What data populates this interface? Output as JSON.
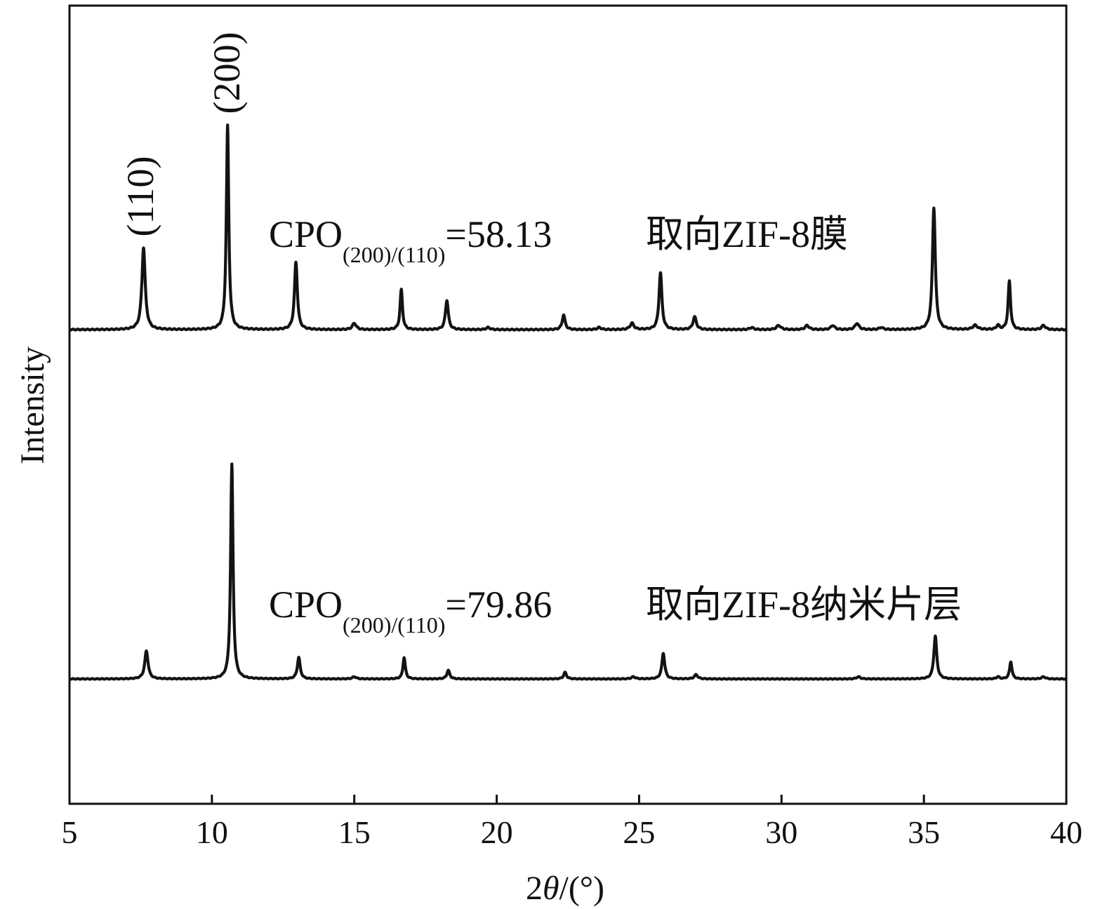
{
  "chart_data": {
    "type": "line",
    "xlabel_prefix": "2",
    "xlabel_theta": "θ",
    "xlabel_suffix": "/(°)",
    "ylabel": "Intensity",
    "xlim": [
      5,
      40
    ],
    "x_ticks": [
      5,
      10,
      15,
      20,
      25,
      30,
      35,
      40
    ],
    "x_tick_labels": [
      "5",
      "10",
      "15",
      "20",
      "25",
      "30",
      "35",
      "40"
    ],
    "y_ticks_shown": false,
    "grid": false,
    "peak_labels": [
      {
        "text": "(110)",
        "x": 7.6
      },
      {
        "text": "(200)",
        "x": 10.6
      }
    ],
    "series": [
      {
        "annotation_main": "CPO",
        "annotation_sub": "(200)/(110)",
        "annotation_value": "=58.13",
        "annotation_name": "取向ZIF-8膜",
        "baseline": 0,
        "peaks": [
          {
            "x": 7.6,
            "h": 0.39,
            "w": 0.07
          },
          {
            "x": 10.55,
            "h": 0.97,
            "w": 0.05
          },
          {
            "x": 12.95,
            "h": 0.32,
            "w": 0.06
          },
          {
            "x": 15.0,
            "h": 0.03,
            "w": 0.08
          },
          {
            "x": 16.65,
            "h": 0.19,
            "w": 0.05
          },
          {
            "x": 18.25,
            "h": 0.14,
            "w": 0.06
          },
          {
            "x": 19.7,
            "h": 0.01,
            "w": 0.08
          },
          {
            "x": 22.35,
            "h": 0.07,
            "w": 0.06
          },
          {
            "x": 23.6,
            "h": 0.01,
            "w": 0.08
          },
          {
            "x": 24.75,
            "h": 0.03,
            "w": 0.08
          },
          {
            "x": 25.75,
            "h": 0.27,
            "w": 0.06
          },
          {
            "x": 26.95,
            "h": 0.06,
            "w": 0.07
          },
          {
            "x": 28.95,
            "h": 0.01,
            "w": 0.08
          },
          {
            "x": 29.9,
            "h": 0.02,
            "w": 0.09
          },
          {
            "x": 30.9,
            "h": 0.02,
            "w": 0.08
          },
          {
            "x": 31.8,
            "h": 0.02,
            "w": 0.08
          },
          {
            "x": 32.65,
            "h": 0.03,
            "w": 0.08
          },
          {
            "x": 33.5,
            "h": 0.01,
            "w": 0.08
          },
          {
            "x": 35.35,
            "h": 0.58,
            "w": 0.06
          },
          {
            "x": 36.8,
            "h": 0.02,
            "w": 0.1
          },
          {
            "x": 37.6,
            "h": 0.02,
            "w": 0.06
          },
          {
            "x": 38.0,
            "h": 0.23,
            "w": 0.05
          },
          {
            "x": 39.2,
            "h": 0.02,
            "w": 0.08
          }
        ]
      },
      {
        "annotation_main": "CPO",
        "annotation_sub": "(200)/(110)",
        "annotation_value": "=79.86",
        "annotation_name": "取向ZIF-8纳米片层",
        "baseline": 0,
        "peaks": [
          {
            "x": 7.7,
            "h": 0.13,
            "w": 0.07
          },
          {
            "x": 10.7,
            "h": 1.0,
            "w": 0.05
          },
          {
            "x": 13.05,
            "h": 0.1,
            "w": 0.06
          },
          {
            "x": 15.0,
            "h": 0.01,
            "w": 0.08
          },
          {
            "x": 16.75,
            "h": 0.1,
            "w": 0.05
          },
          {
            "x": 18.3,
            "h": 0.04,
            "w": 0.06
          },
          {
            "x": 22.4,
            "h": 0.03,
            "w": 0.06
          },
          {
            "x": 24.8,
            "h": 0.01,
            "w": 0.08
          },
          {
            "x": 25.85,
            "h": 0.12,
            "w": 0.06
          },
          {
            "x": 27.0,
            "h": 0.02,
            "w": 0.07
          },
          {
            "x": 32.7,
            "h": 0.01,
            "w": 0.08
          },
          {
            "x": 35.4,
            "h": 0.2,
            "w": 0.06
          },
          {
            "x": 37.6,
            "h": 0.01,
            "w": 0.06
          },
          {
            "x": 38.05,
            "h": 0.08,
            "w": 0.05
          },
          {
            "x": 39.2,
            "h": 0.01,
            "w": 0.08
          }
        ]
      }
    ]
  }
}
